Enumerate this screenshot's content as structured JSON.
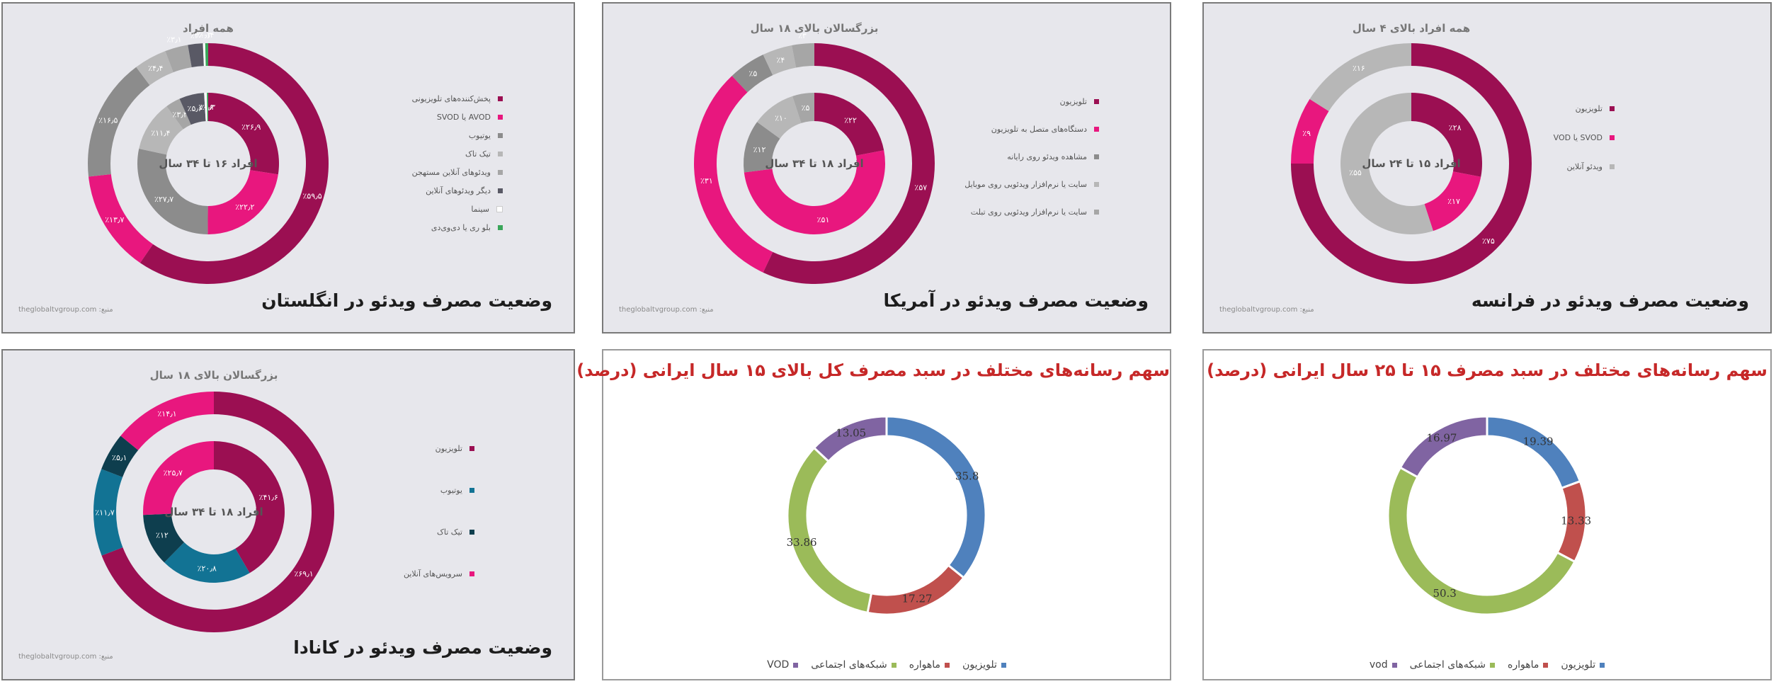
{
  "colors": {
    "maroon": "#9b0f52",
    "pink": "#e8177e",
    "gray": "#8c8c8c",
    "lightgray": "#b7b7b7",
    "darkgray": "#595965",
    "mediumgray": "#a6a6a6",
    "white": "#ffffff",
    "green": "#3aa65a",
    "teal": "#127394",
    "darkteal": "#0e3e4e",
    "blue": "#4f81bd",
    "red": "#c0504d",
    "olive": "#9bbb59",
    "purple": "#8064a2"
  },
  "source_text": "منبع: theglobaltvgroup.com",
  "uk": {
    "title": "وضعیت مصرف ویدئو در انگلستان",
    "chart_data": {
      "type": "donut",
      "series": [
        {
          "name": "همه افراد",
          "ring": "outer",
          "values": [
            59.5,
            13.7,
            16.5,
            4.4,
            3.1,
            2.0,
            0.3,
            0.4
          ]
        },
        {
          "name": "افراد ۱۶ تا ۳۴ سال",
          "ring": "inner",
          "values": [
            26.9,
            22.2,
            27.7,
            11.4,
            3.3,
            5.6,
            0.6,
            0.3
          ]
        }
      ],
      "outer_labels": [
        "٪۵۹٫۵",
        "٪۱۳٫۷",
        "٪۱۶٫۵",
        "٪۴٫۴",
        "٪۳٫۱",
        "٪۲",
        "٪۰٫۳",
        "٪۰٫۴"
      ],
      "inner_labels": [
        "٪۲۶٫۹",
        "٪۲۲٫۲",
        "٪۲۷٫۷",
        "٪۱۱٫۴",
        "٪۳٫۳",
        "٪۵٫۶",
        "٪۰٫۶",
        "٪۰٫۳"
      ],
      "slice_colors": [
        "maroon",
        "pink",
        "gray",
        "lightgray",
        "mediumgray",
        "darkgray",
        "white",
        "green"
      ]
    },
    "legend": [
      "پخش‌کننده‌های تلویزیونی",
      "AVOD یا SVOD",
      "یوتیوب",
      "تیک تاک",
      "ویدئوهای آنلاین مستهجن",
      "دیگر ویدئوهای آنلاین",
      "سینما",
      "بلو ری یا دی‌وی‌دی"
    ]
  },
  "us": {
    "title": "وضعیت مصرف ویدئو در آمریکا",
    "chart_data": {
      "type": "donut",
      "series": [
        {
          "name": "بزرگسالان بالای ۱۸ سال",
          "ring": "outer",
          "values": [
            57,
            31,
            5,
            4,
            3
          ]
        },
        {
          "name": "افراد ۱۸ تا ۳۴ سال",
          "ring": "inner",
          "values": [
            22,
            51,
            12,
            10,
            5
          ]
        }
      ],
      "outer_labels": [
        "٪۵۷",
        "٪۳۱",
        "٪۵",
        "٪۴",
        "٪۳"
      ],
      "inner_labels": [
        "٪۲۲",
        "٪۵۱",
        "٪۱۲",
        "٪۱۰",
        "٪۵"
      ],
      "slice_colors": [
        "maroon",
        "pink",
        "gray",
        "lightgray",
        "mediumgray"
      ]
    },
    "legend": [
      "تلویزیون",
      "دستگاه‌های متصل به تلویزیون",
      "مشاهده ویدئو روی رایانه",
      "سایت یا نرم‌افزار ویدئویی روی موبایل",
      "سایت یا نرم‌افزار ویدئویی روی تبلت"
    ]
  },
  "fr": {
    "title": "وضعیت مصرف ویدئو در فرانسه",
    "chart_data": {
      "type": "donut",
      "series": [
        {
          "name": "همه افراد بالای ۴ سال",
          "ring": "outer",
          "values": [
            75,
            9,
            16
          ]
        },
        {
          "name": "افراد ۱۵ تا ۲۴ سال",
          "ring": "inner",
          "values": [
            28,
            17,
            55
          ]
        }
      ],
      "outer_labels": [
        "٪۷۵",
        "٪۹",
        "٪۱۶"
      ],
      "inner_labels": [
        "٪۲۸",
        "٪۱۷",
        "٪۵۵"
      ],
      "slice_colors": [
        "maroon",
        "pink",
        "lightgray"
      ]
    },
    "legend": [
      "تلویزیون",
      "SVOD یا VOD",
      "ویدئو آنلاین"
    ]
  },
  "ca": {
    "title": "وضعیت مصرف ویدئو در کانادا",
    "chart_data": {
      "type": "donut",
      "series": [
        {
          "name": "بزرگسالان بالای ۱۸ سال",
          "ring": "outer",
          "values": [
            69.1,
            11.7,
            5.1,
            14.1
          ]
        },
        {
          "name": "افراد ۱۸ تا ۳۴ سال",
          "ring": "inner",
          "values": [
            41.6,
            20.8,
            12,
            25.7
          ]
        }
      ],
      "outer_labels": [
        "٪۶۹٫۱",
        "٪۱۱٫۷",
        "٪۵٫۱",
        "٪۱۴٫۱"
      ],
      "inner_labels": [
        "٪۴۱٫۶",
        "٪۲۰٫۸",
        "٪۱۲",
        "٪۲۵٫۷"
      ],
      "slice_colors": [
        "maroon",
        "teal",
        "darkteal",
        "pink"
      ]
    },
    "legend": [
      "تلویزیون",
      "یوتیوب",
      "تیک تاک",
      "سرویس‌های آنلاین"
    ]
  },
  "ir15": {
    "title": "سهم رسانه‌های مختلف در سبد مصرف کل بالای ۱۵ سال ایرانی (درصد)",
    "chart_data": {
      "type": "donut",
      "series": [
        {
          "values": [
            35.8,
            17.27,
            33.86,
            13.05
          ]
        }
      ],
      "value_labels": [
        "35.8",
        "17.27",
        "33.86",
        "13.05"
      ],
      "slice_colors": [
        "blue",
        "red",
        "olive",
        "purple"
      ]
    },
    "legend": [
      "تلویزیون",
      "ماهواره",
      "شبکه‌های اجتماعی",
      "VOD"
    ]
  },
  "ir25": {
    "title": "سهم رسانه‌های مختلف در سبد مصرف ۱۵ تا ۲۵ سال ایرانی (درصد)",
    "chart_data": {
      "type": "donut",
      "series": [
        {
          "values": [
            19.39,
            13.33,
            50.3,
            16.97
          ]
        }
      ],
      "value_labels": [
        "19.39",
        "13.33",
        "50.3",
        "16.97"
      ],
      "slice_colors": [
        "blue",
        "red",
        "olive",
        "purple"
      ]
    },
    "legend": [
      "تلویزیون",
      "ماهواره",
      "شبکه‌های اجتماعی",
      "vod"
    ]
  }
}
